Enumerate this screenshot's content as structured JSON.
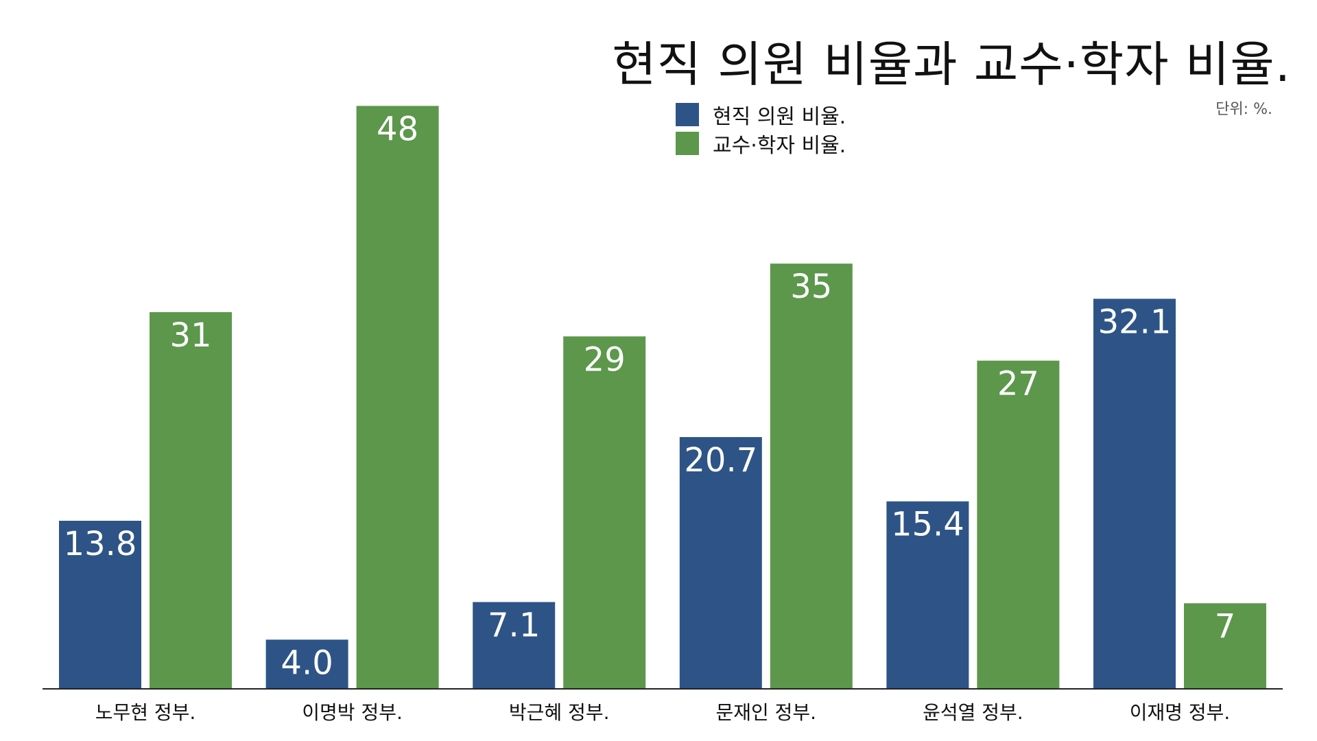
{
  "chart_data": {
    "type": "bar",
    "title": "현직 의원 비율과 교수·학자 비율.",
    "unit": "단위: %.",
    "categories": [
      "노무현 정부.",
      "이명박 정부.",
      "박근혜 정부.",
      "문재인 정부.",
      "윤석열 정부.",
      "이재명 정부."
    ],
    "series": [
      {
        "name": "현직 의원 비율.",
        "color": "#2e5487",
        "values": [
          13.8,
          4.0,
          7.1,
          20.7,
          15.4,
          32.1
        ],
        "labels": [
          "13.8",
          "4.0",
          "7.1",
          "20.7",
          "15.4",
          "32.1"
        ]
      },
      {
        "name": "교수·학자 비율.",
        "color": "#5c974b",
        "values": [
          31,
          48,
          29,
          35,
          27,
          7
        ],
        "labels": [
          "31",
          "48",
          "29",
          "35",
          "27",
          "7"
        ]
      }
    ],
    "ylim": [
      0,
      50
    ],
    "grid": false,
    "legend_position": "top-center"
  }
}
